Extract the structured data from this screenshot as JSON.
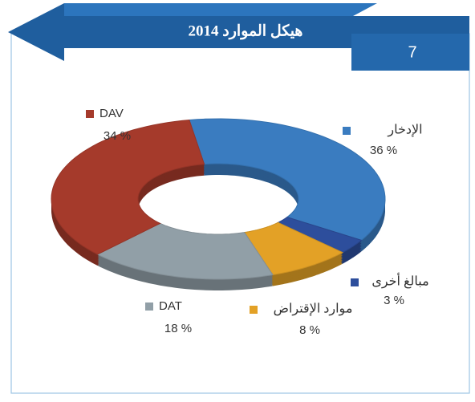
{
  "slide": {
    "number": "7"
  },
  "chart_data": {
    "type": "donut",
    "title": "هيكل الموارد 2014",
    "categories": [
      "الإدخار",
      "مبالغ أخرى",
      "موارد الإقتراض",
      "DAT",
      "DAV"
    ],
    "values": [
      36,
      3,
      8,
      18,
      34
    ],
    "value_labels": [
      "36 %",
      "3 %",
      "8 %",
      "18 %",
      "34 %"
    ],
    "colors": [
      "#3a7cc0",
      "#2d4e9c",
      "#e3a126",
      "#919fa7",
      "#a53a2b"
    ]
  }
}
